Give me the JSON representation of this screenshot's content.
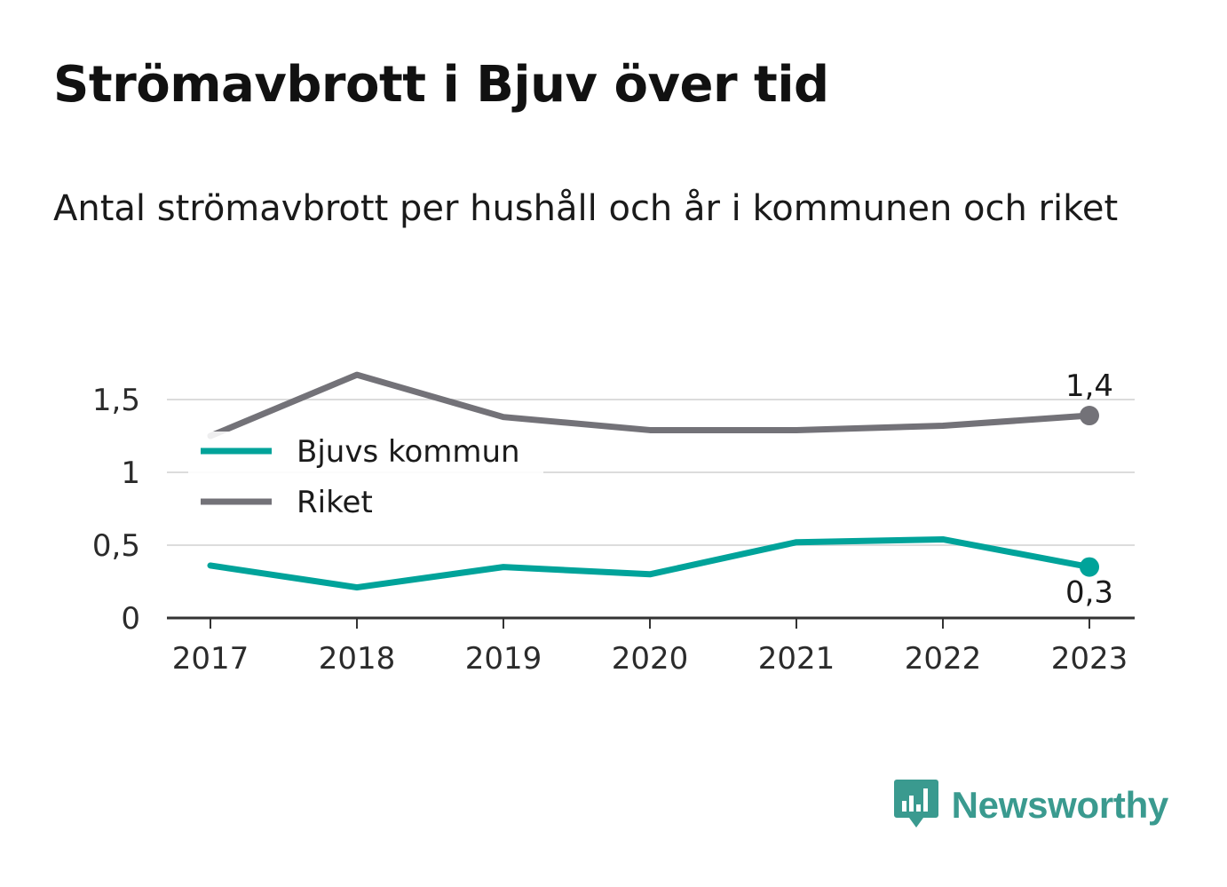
{
  "title": "Strömavbrott i Bjuv över tid",
  "subtitle": "Antal strömavbrott per hushåll och år i kommunen och riket",
  "chart_data": {
    "type": "line",
    "x": [
      "2017",
      "2018",
      "2019",
      "2020",
      "2021",
      "2022",
      "2023"
    ],
    "series": [
      {
        "name": "Bjuvs kommun",
        "color": "#00a39a",
        "values": [
          0.36,
          0.21,
          0.35,
          0.3,
          0.52,
          0.54,
          0.35
        ],
        "end_label": "0,3"
      },
      {
        "name": "Riket",
        "color": "#737278",
        "values": [
          1.25,
          1.67,
          1.38,
          1.29,
          1.29,
          1.32,
          1.39
        ],
        "end_label": "1,4"
      }
    ],
    "y_ticks": [
      {
        "value": 0,
        "label": "0"
      },
      {
        "value": 0.5,
        "label": "0,5"
      },
      {
        "value": 1,
        "label": "1"
      },
      {
        "value": 1.5,
        "label": "1,5"
      }
    ],
    "ylim": [
      0,
      1.5
    ],
    "grid": true,
    "legend_position": "top-left"
  },
  "brand": {
    "name": "Newsworthy",
    "color": "#3a9a8f",
    "icon": "newsworthy-logo-icon"
  }
}
